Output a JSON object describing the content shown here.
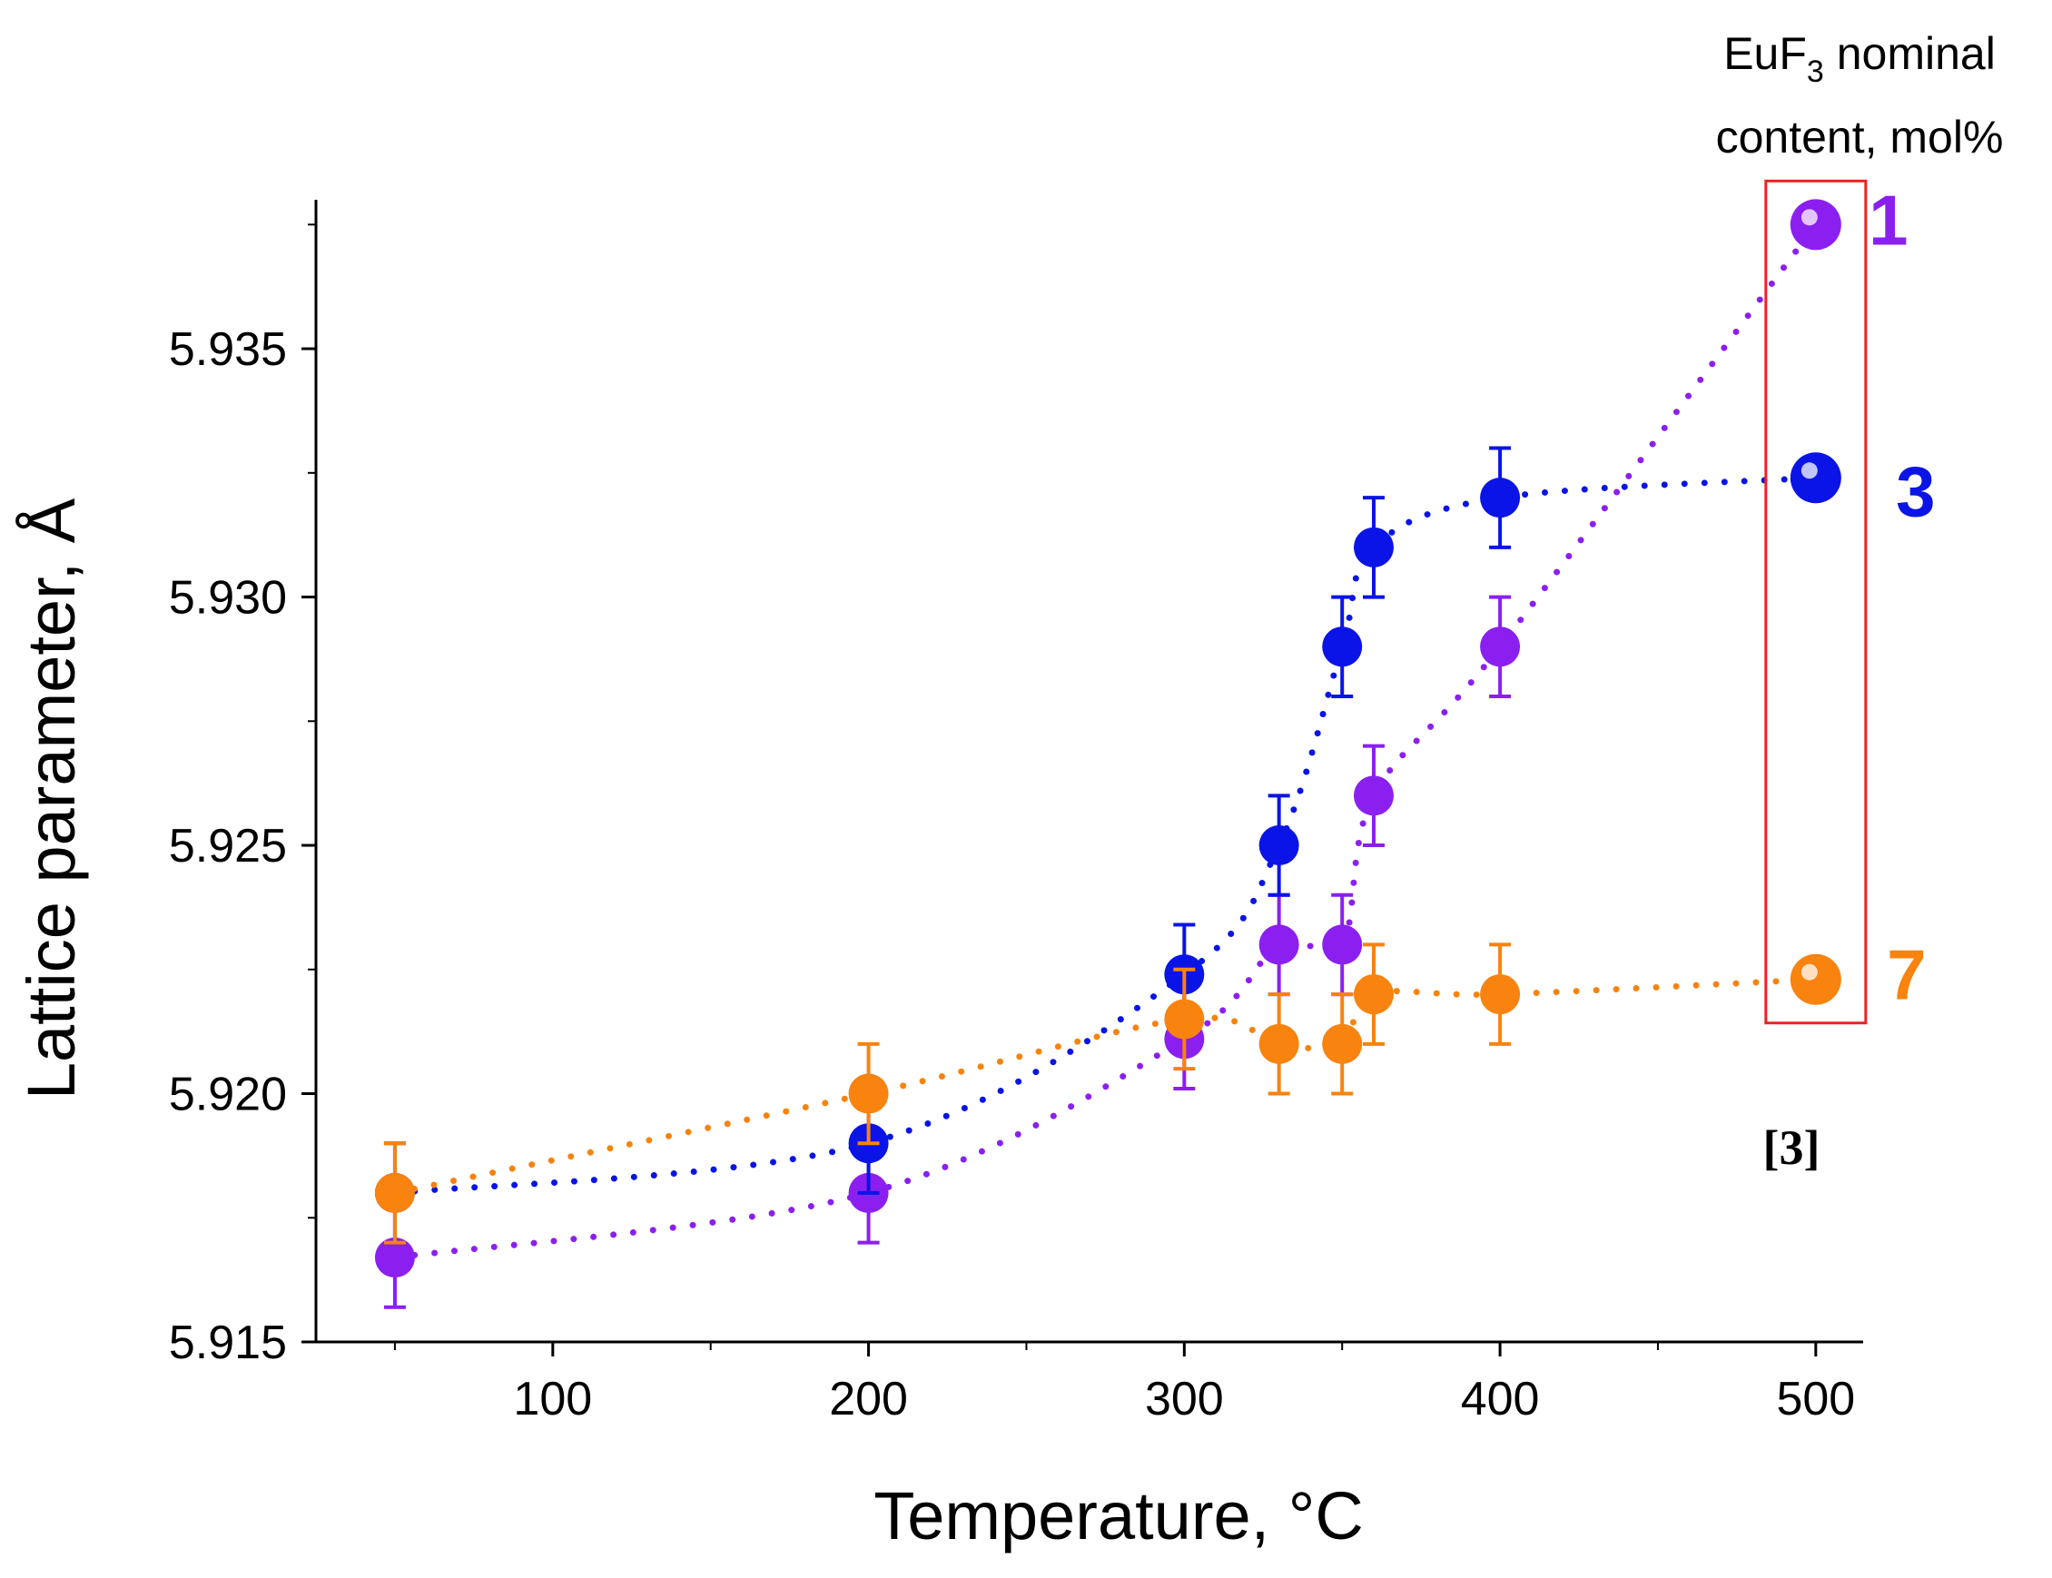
{
  "chart_data": {
    "type": "scatter",
    "xlabel": "Temperature, °C",
    "ylabel": "Lattice parameter, Å",
    "xlim": [
      25,
      515
    ],
    "ylim": [
      5.915,
      5.938
    ],
    "x_ticks": [
      100,
      200,
      300,
      400,
      500
    ],
    "x_tick_labels": [
      "100",
      "200",
      "300",
      "400",
      "500"
    ],
    "y_ticks": [
      5.915,
      5.92,
      5.925,
      5.93,
      5.935
    ],
    "y_tick_labels": [
      "5.915",
      "5.920",
      "5.925",
      "5.930",
      "5.935"
    ],
    "grid": false,
    "legend_title": {
      "prefix": "EuF",
      "subscript": "3",
      "suffix": " nominal",
      "line2": "content, mol%"
    },
    "series": [
      {
        "name": "1",
        "color": "#8b1ff0",
        "x": [
          50,
          200,
          300,
          330,
          350,
          360,
          400
        ],
        "y": [
          5.9167,
          5.918,
          5.9211,
          5.923,
          5.923,
          5.926,
          5.929
        ],
        "err": [
          0.001,
          0.001,
          0.001,
          0.001,
          0.001,
          0.001,
          0.001
        ],
        "reference_point": {
          "x": 500,
          "y": 5.9375
        }
      },
      {
        "name": "3",
        "color": "#0a14e6",
        "x": [
          50,
          200,
          300,
          330,
          350,
          360,
          400
        ],
        "y": [
          5.918,
          5.919,
          5.9224,
          5.925,
          5.929,
          5.931,
          5.932
        ],
        "err": [
          0.001,
          0.001,
          0.001,
          0.001,
          0.001,
          0.001,
          0.001
        ],
        "reference_point": {
          "x": 500,
          "y": 5.9324
        }
      },
      {
        "name": "7",
        "color": "#f8830e",
        "x": [
          50,
          200,
          300,
          330,
          350,
          360,
          400
        ],
        "y": [
          5.918,
          5.92,
          5.9215,
          5.921,
          5.921,
          5.922,
          5.922
        ],
        "err": [
          0.001,
          0.001,
          0.001,
          0.001,
          0.001,
          0.001,
          0.001
        ],
        "reference_point": {
          "x": 500,
          "y": 5.9223
        }
      }
    ],
    "annotation": "[3]",
    "highlight_box_color": "#ee2222"
  }
}
